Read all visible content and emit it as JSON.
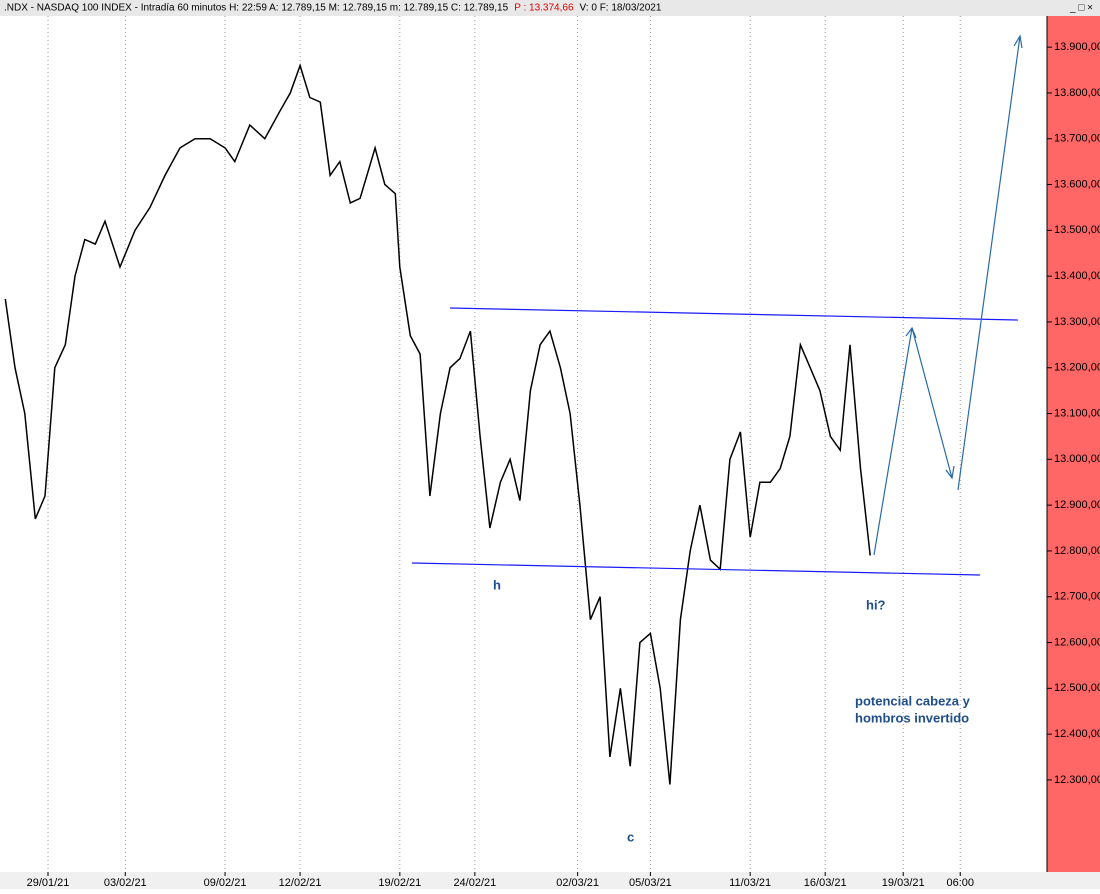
{
  "chart_data": {
    "type": "line",
    "title_segments": [
      ".NDX - NASDAQ 100 INDEX - Intradía 60 minutos  H: 22:59  A: 12.789,15  M: 12.789,15  m: 12.789,15  C: 12.789,15",
      "P : 13.374,66",
      "V: 0  F: 18/03/2021"
    ],
    "x": [
      0.7,
      2,
      3.3,
      4.7,
      6,
      7.3,
      8.7,
      10,
      11.3,
      12.7,
      14,
      16,
      18,
      20,
      22,
      24,
      26,
      28,
      30,
      31.3,
      33.3,
      35.3,
      37.3,
      38.7,
      40,
      41.3,
      42.7,
      44,
      45.3,
      46.7,
      48,
      50,
      51.3,
      52.7,
      53.3,
      54.7,
      56,
      57.3,
      58.7,
      60,
      61.3,
      62.7,
      64,
      65.3,
      66.7,
      68,
      69.3,
      70.7,
      72,
      73.3,
      74.7,
      76,
      77.3,
      78.7,
      80,
      81.3,
      82.7,
      84,
      85.3,
      86.7,
      88,
      89.3,
      90.7,
      92,
      93.3,
      94.7,
      96,
      97.3,
      98.7,
      100,
      101.3,
      102.7,
      104,
      105.3,
      106.7,
      108,
      109.3,
      110.7,
      112,
      113.3,
      114.7,
      116
    ],
    "series": [
      {
        "name": ".NDX",
        "color": "#000000",
        "values": [
          13350,
          13200,
          13100,
          12870,
          12920,
          13200,
          13250,
          13400,
          13480,
          13470,
          13520,
          13420,
          13500,
          13550,
          13620,
          13680,
          13700,
          13700,
          13680,
          13650,
          13730,
          13700,
          13760,
          13800,
          13860,
          13790,
          13780,
          13620,
          13650,
          13560,
          13570,
          13680,
          13600,
          13580,
          13420,
          13270,
          13230,
          12920,
          13100,
          13200,
          13220,
          13280,
          13050,
          12850,
          12950,
          13000,
          12910,
          13150,
          13250,
          13280,
          13200,
          13100,
          12900,
          12650,
          12700,
          12350,
          12500,
          12330,
          12600,
          12620,
          12500,
          12290,
          12650,
          12800,
          12900,
          12780,
          12760,
          13000,
          13060,
          12830,
          12950,
          12950,
          12980,
          13050,
          13250,
          13200,
          13150,
          13050,
          13020,
          13250,
          12980,
          12790
        ]
      }
    ],
    "xlim": [
      0,
      139.3
    ],
    "xticks": [
      {
        "value": 6.4,
        "label": "29/01/21"
      },
      {
        "value": 16.7,
        "label": "03/02/21"
      },
      {
        "value": 30,
        "label": "09/02/21"
      },
      {
        "value": 40,
        "label": "12/02/21"
      },
      {
        "value": 53.3,
        "label": "19/02/21"
      },
      {
        "value": 63.3,
        "label": "24/02/21"
      },
      {
        "value": 77,
        "label": "02/03/21"
      },
      {
        "value": 86.7,
        "label": "05/03/21"
      },
      {
        "value": 100,
        "label": "11/03/21"
      },
      {
        "value": 110,
        "label": "16/03/21"
      },
      {
        "value": 120.4,
        "label": "19/03/21"
      },
      {
        "value": 128,
        "label": "06:00"
      }
    ],
    "ylim": [
      12099,
      13968
    ],
    "yticks": [
      {
        "value": 12300,
        "label": "12.300,00"
      },
      {
        "value": 12400,
        "label": "12.400,00"
      },
      {
        "value": 12500,
        "label": "12.500,00"
      },
      {
        "value": 12600,
        "label": "12.600,00"
      },
      {
        "value": 12700,
        "label": "12.700,00"
      },
      {
        "value": 12800,
        "label": "12.800,00"
      },
      {
        "value": 12900,
        "label": "12.900,00"
      },
      {
        "value": 13000,
        "label": "13.000,00"
      },
      {
        "value": 13100,
        "label": "13.100,00"
      },
      {
        "value": 13200,
        "label": "13.200,00"
      },
      {
        "value": 13300,
        "label": "13.300,00"
      },
      {
        "value": 13400,
        "label": "13.400,00"
      },
      {
        "value": 13500,
        "label": "13.500,00"
      },
      {
        "value": 13600,
        "label": "13.600,00"
      },
      {
        "value": 13700,
        "label": "13.700,00"
      },
      {
        "value": 13800,
        "label": "13.800,00"
      },
      {
        "value": 13900,
        "label": "13.900,00"
      }
    ],
    "grid_x": true,
    "annotations": [
      "h",
      "c",
      "hi?",
      "potencial cabeza y",
      "hombros invertido"
    ]
  }
}
